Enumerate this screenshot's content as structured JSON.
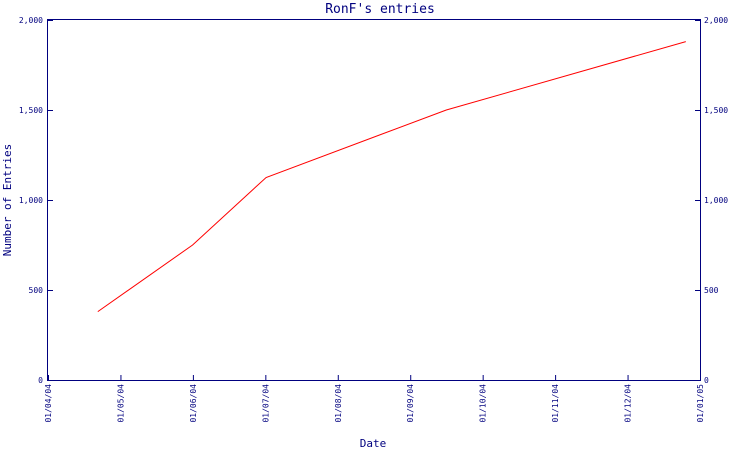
{
  "chart_data": {
    "type": "line",
    "title": "RonF's entries",
    "xlabel": "Date",
    "ylabel": "Number of Entries",
    "x_ticks": [
      "01/04/04",
      "01/05/04",
      "01/06/04",
      "01/07/04",
      "01/08/04",
      "01/09/04",
      "01/10/04",
      "01/11/04",
      "01/12/04",
      "01/01/05"
    ],
    "y_ticks": [
      "0",
      "500",
      "1,000",
      "1,500",
      "2,000"
    ],
    "ylim": [
      0,
      2000
    ],
    "xlim": [
      "2004-04-01",
      "2005-01-01"
    ],
    "series": [
      {
        "color": "#ff0000",
        "points": [
          {
            "x": "2004-04-22",
            "y": 380
          },
          {
            "x": "2004-06-01",
            "y": 750
          },
          {
            "x": "2004-07-02",
            "y": 1125
          },
          {
            "x": "2004-09-16",
            "y": 1500
          },
          {
            "x": "2004-12-26",
            "y": 1880
          }
        ]
      }
    ],
    "grid": false,
    "right_axis_mirrored": true
  },
  "colors": {
    "axis": "#00007f",
    "series": "#ff0000"
  }
}
